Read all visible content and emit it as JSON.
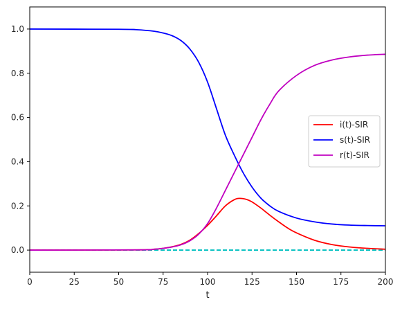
{
  "chart_data": {
    "type": "line",
    "title": "",
    "xlabel": "t",
    "ylabel": "",
    "xlim": [
      0,
      200
    ],
    "ylim": [
      -0.1,
      1.1
    ],
    "x_ticks": [
      0,
      25,
      50,
      75,
      100,
      125,
      150,
      175,
      200
    ],
    "y_ticks": [
      0.0,
      0.2,
      0.4,
      0.6,
      0.8,
      1.0
    ],
    "x_tick_labels": [
      "0",
      "25",
      "50",
      "75",
      "100",
      "125",
      "150",
      "175",
      "200"
    ],
    "y_tick_labels": [
      "0.0",
      "0.2",
      "0.4",
      "0.6",
      "0.8",
      "1.0"
    ],
    "grid": false,
    "legend_position": "center-right",
    "series": [
      {
        "name": "i(t)-SIR",
        "color": "#ff0000",
        "style": "solid",
        "x": [
          0,
          60,
          70,
          75,
          80,
          85,
          90,
          95,
          100,
          105,
          110,
          115,
          118,
          122,
          125,
          130,
          135,
          140,
          145,
          150,
          160,
          170,
          180,
          190,
          200
        ],
        "y": [
          0.0,
          0.001,
          0.004,
          0.008,
          0.015,
          0.026,
          0.045,
          0.075,
          0.112,
          0.155,
          0.2,
          0.228,
          0.234,
          0.229,
          0.218,
          0.19,
          0.158,
          0.128,
          0.1,
          0.078,
          0.045,
          0.025,
          0.014,
          0.008,
          0.004
        ]
      },
      {
        "name": "s(t)-SIR",
        "color": "#0000ff",
        "style": "solid",
        "x": [
          0,
          50,
          60,
          70,
          75,
          80,
          85,
          90,
          95,
          100,
          105,
          110,
          115,
          120,
          125,
          130,
          135,
          140,
          150,
          160,
          170,
          180,
          190,
          200
        ],
        "y": [
          1.0,
          0.999,
          0.997,
          0.99,
          0.982,
          0.97,
          0.948,
          0.91,
          0.85,
          0.76,
          0.64,
          0.52,
          0.43,
          0.35,
          0.285,
          0.235,
          0.2,
          0.175,
          0.145,
          0.128,
          0.118,
          0.113,
          0.111,
          0.11
        ]
      },
      {
        "name": "r(t)-SIR",
        "color": "#c000c0",
        "style": "solid",
        "x": [
          0,
          60,
          70,
          75,
          80,
          85,
          90,
          95,
          100,
          105,
          110,
          115,
          120,
          125,
          130,
          135,
          140,
          150,
          160,
          170,
          180,
          190,
          200
        ],
        "y": [
          0.0,
          0.001,
          0.004,
          0.008,
          0.014,
          0.024,
          0.042,
          0.072,
          0.12,
          0.19,
          0.27,
          0.35,
          0.43,
          0.51,
          0.59,
          0.66,
          0.72,
          0.79,
          0.835,
          0.86,
          0.874,
          0.882,
          0.886
        ]
      },
      {
        "name": "",
        "color": "#00bfbf",
        "style": "dashed",
        "x": [
          0,
          200
        ],
        "y": [
          0.0,
          0.0
        ]
      }
    ]
  }
}
